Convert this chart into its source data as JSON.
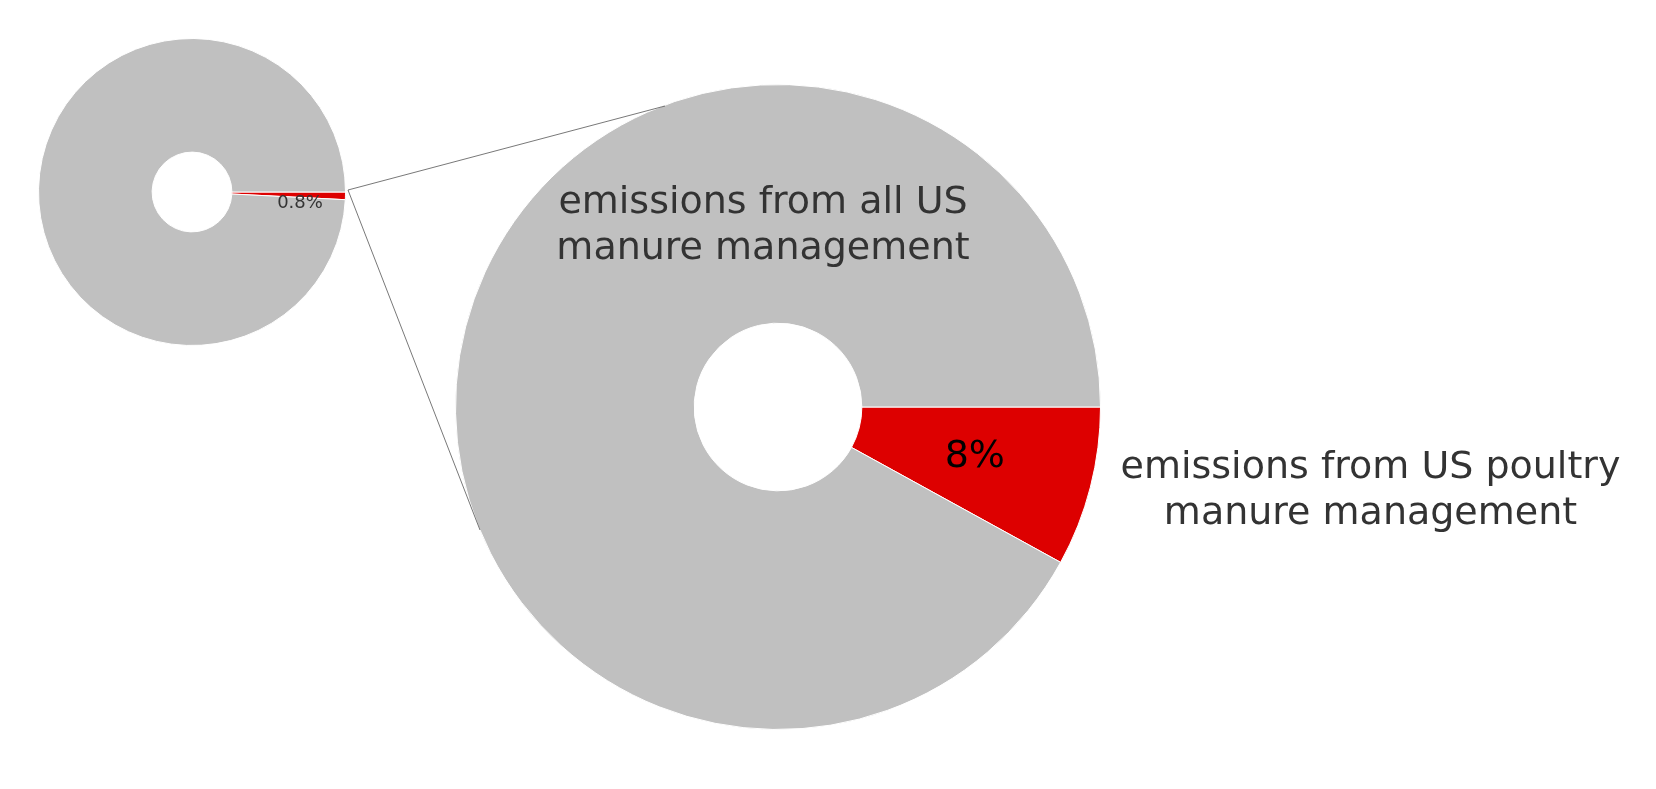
{
  "chart_data": [
    {
      "type": "donut",
      "categories": [
        null,
        null
      ],
      "values": [
        0.8,
        99.2
      ],
      "colors": [
        "#dd0000",
        "#c0c0c0"
      ],
      "value_labels": [
        "0.8%",
        null
      ]
    },
    {
      "type": "donut",
      "categories": [
        "emissions from US poultry manure management",
        "emissions from all US manure management"
      ],
      "values": [
        8,
        92
      ],
      "colors": [
        "#dd0000",
        "#c0c0c0"
      ],
      "value_labels": [
        "8%",
        null
      ]
    }
  ]
}
